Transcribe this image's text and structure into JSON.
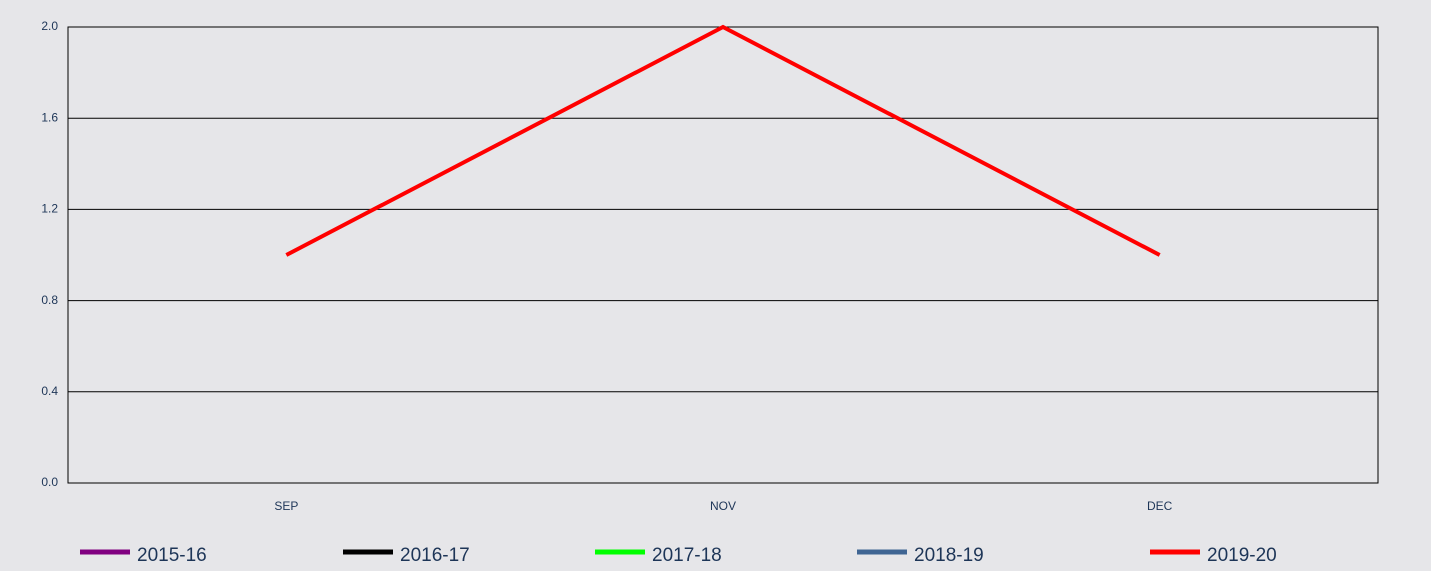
{
  "chart_data": {
    "type": "line",
    "categories": [
      "SEP",
      "NOV",
      "DEC"
    ],
    "series": [
      {
        "name": "2015-16",
        "color": "#800080",
        "values": [
          null,
          null,
          null
        ]
      },
      {
        "name": "2016-17",
        "color": "#000000",
        "values": [
          null,
          null,
          null
        ]
      },
      {
        "name": "2017-18",
        "color": "#00ff00",
        "values": [
          null,
          null,
          null
        ]
      },
      {
        "name": "2018-19",
        "color": "#3f6593",
        "values": [
          null,
          null,
          null
        ]
      },
      {
        "name": "2019-20",
        "color": "#ff0000",
        "values": [
          1,
          2,
          1
        ]
      }
    ],
    "ylim": [
      0,
      2
    ],
    "yticks": [
      {
        "value": 0,
        "label": "0.0"
      },
      {
        "value": 0.4,
        "label": "0.4"
      },
      {
        "value": 0.8,
        "label": "0.8"
      },
      {
        "value": 1.2,
        "label": "1.2"
      },
      {
        "value": 1.6,
        "label": "1.6"
      },
      {
        "value": 2,
        "label": "2.0"
      }
    ],
    "grid": true
  }
}
